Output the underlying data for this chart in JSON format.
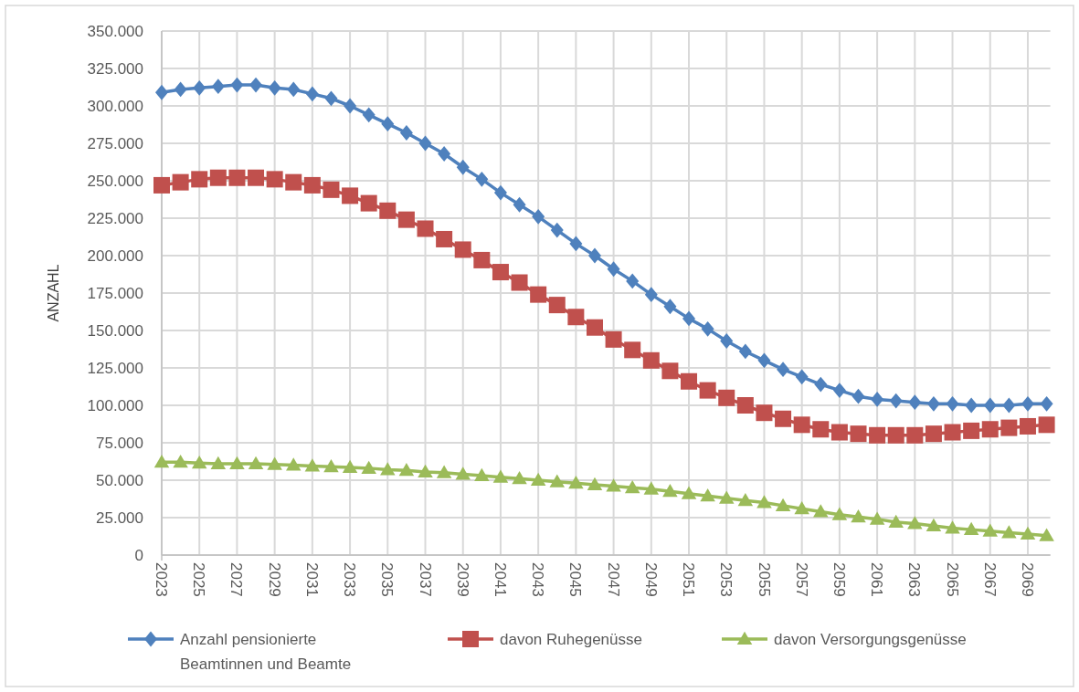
{
  "chart_data": {
    "type": "line",
    "ylabel": "ANZAHL",
    "categories": [
      "2023",
      null,
      "2025",
      null,
      "2027",
      null,
      "2029",
      null,
      "2031",
      null,
      "2033",
      null,
      "2035",
      null,
      "2037",
      null,
      "2039",
      null,
      "2041",
      null,
      "2043",
      null,
      "2045",
      null,
      "2047",
      null,
      "2049",
      null,
      "2051",
      null,
      "2053",
      null,
      "2055",
      null,
      "2057",
      null,
      "2059",
      null,
      "2061",
      null,
      "2063",
      null,
      "2065",
      null,
      "2067",
      null,
      "2069",
      null
    ],
    "series": [
      {
        "name": "Anzahl pensionierte Beamtinnen und Beamte",
        "color": "#4f81bd",
        "marker": "diamond",
        "values": [
          309000,
          311000,
          312000,
          313000,
          314000,
          314000,
          312000,
          311000,
          308000,
          305000,
          300000,
          294000,
          288000,
          282000,
          275000,
          268000,
          259000,
          251000,
          242000,
          234000,
          226000,
          217000,
          208000,
          200000,
          191000,
          183000,
          174000,
          166000,
          158000,
          151000,
          143000,
          136000,
          130000,
          124000,
          119000,
          114000,
          110000,
          106000,
          104000,
          103000,
          102000,
          101000,
          101000,
          100000,
          100000,
          100000,
          101000,
          101000
        ]
      },
      {
        "name": "davon Ruhegenüsse",
        "color": "#c0504d",
        "marker": "square",
        "values": [
          247000,
          249000,
          251000,
          252000,
          252000,
          252000,
          251000,
          249000,
          247000,
          244000,
          240000,
          235000,
          230000,
          224000,
          218000,
          211000,
          204000,
          197000,
          189000,
          182000,
          174000,
          167000,
          159000,
          152000,
          144000,
          137000,
          130000,
          123000,
          116000,
          110000,
          105000,
          100000,
          95000,
          91000,
          87000,
          84000,
          82000,
          81000,
          80000,
          80000,
          80000,
          81000,
          82000,
          83000,
          84000,
          85000,
          86000,
          87000
        ]
      },
      {
        "name": "davon Versorgungsgenüsse",
        "color": "#9bbb59",
        "marker": "triangle",
        "values": [
          62000,
          62000,
          61500,
          61000,
          61000,
          61000,
          60500,
          60000,
          59500,
          59000,
          58500,
          58000,
          57000,
          56500,
          55500,
          55000,
          54000,
          53000,
          52000,
          51000,
          50000,
          49000,
          48000,
          47000,
          46000,
          45000,
          44000,
          42500,
          41000,
          39500,
          38000,
          36500,
          35000,
          33000,
          31000,
          29000,
          27000,
          25500,
          24000,
          22000,
          21000,
          19500,
          18000,
          17000,
          16000,
          15000,
          14000,
          13000
        ]
      }
    ],
    "ylim": [
      0,
      350000
    ],
    "yticks": [
      {
        "value": 0,
        "label": "0"
      },
      {
        "value": 25000,
        "label": "25.000"
      },
      {
        "value": 50000,
        "label": "50.000"
      },
      {
        "value": 75000,
        "label": "75.000"
      },
      {
        "value": 100000,
        "label": "100.000"
      },
      {
        "value": 125000,
        "label": "125.000"
      },
      {
        "value": 150000,
        "label": "150.000"
      },
      {
        "value": 175000,
        "label": "175.000"
      },
      {
        "value": 200000,
        "label": "200.000"
      },
      {
        "value": 225000,
        "label": "225.000"
      },
      {
        "value": 250000,
        "label": "250.000"
      },
      {
        "value": 275000,
        "label": "275.000"
      },
      {
        "value": 300000,
        "label": "300.000"
      },
      {
        "value": 325000,
        "label": "325.000"
      },
      {
        "value": 350000,
        "label": "350.000"
      }
    ],
    "grid": true,
    "legend": "bottom",
    "line_style": "solid"
  }
}
